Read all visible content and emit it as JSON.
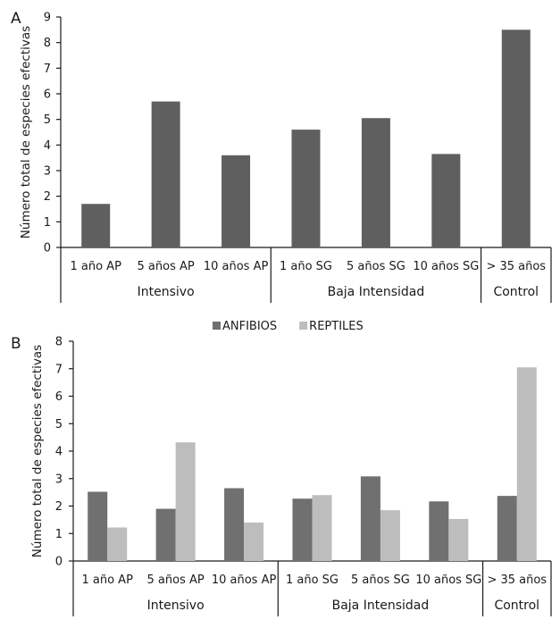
{
  "chart_data": [
    {
      "panel": "A",
      "type": "bar",
      "ylabel": "Número total de especies efectivas",
      "ylim": [
        0,
        9
      ],
      "yticks": [
        0,
        1,
        2,
        3,
        4,
        5,
        6,
        7,
        8,
        9
      ],
      "categories": [
        "1 año AP",
        "5 años AP",
        "10 años AP",
        "1 año SG",
        "5 años SG",
        "10 años SG",
        "> 35 años"
      ],
      "groups": [
        {
          "label": "Intensivo",
          "count": 3
        },
        {
          "label": "Baja Intensidad",
          "count": 3
        },
        {
          "label": "Control",
          "count": 1
        }
      ],
      "values": [
        1.7,
        5.7,
        3.6,
        4.6,
        5.05,
        3.65,
        8.5
      ],
      "colors": [
        "#5f5f5f"
      ]
    },
    {
      "panel": "B",
      "type": "bar",
      "ylabel": "Número total de especies efectivas",
      "ylim": [
        0,
        8
      ],
      "yticks": [
        0,
        1,
        2,
        3,
        4,
        5,
        6,
        7,
        8
      ],
      "categories": [
        "1 año AP",
        "5 años AP",
        "10 años AP",
        "1 año SG",
        "5 años SG",
        "10 años SG",
        "> 35 años"
      ],
      "groups": [
        {
          "label": "Intensivo",
          "count": 3
        },
        {
          "label": "Baja Intensidad",
          "count": 3
        },
        {
          "label": "Control",
          "count": 1
        }
      ],
      "series": [
        {
          "name": "ANFIBIOS",
          "values": [
            2.52,
            1.9,
            2.65,
            2.27,
            3.08,
            2.17,
            2.37
          ]
        },
        {
          "name": "REPTILES",
          "values": [
            1.22,
            4.32,
            1.4,
            2.4,
            1.85,
            1.53,
            7.05
          ]
        }
      ],
      "legend_position": "top-center",
      "colors": [
        "#707070",
        "#bdbdbd"
      ]
    }
  ]
}
